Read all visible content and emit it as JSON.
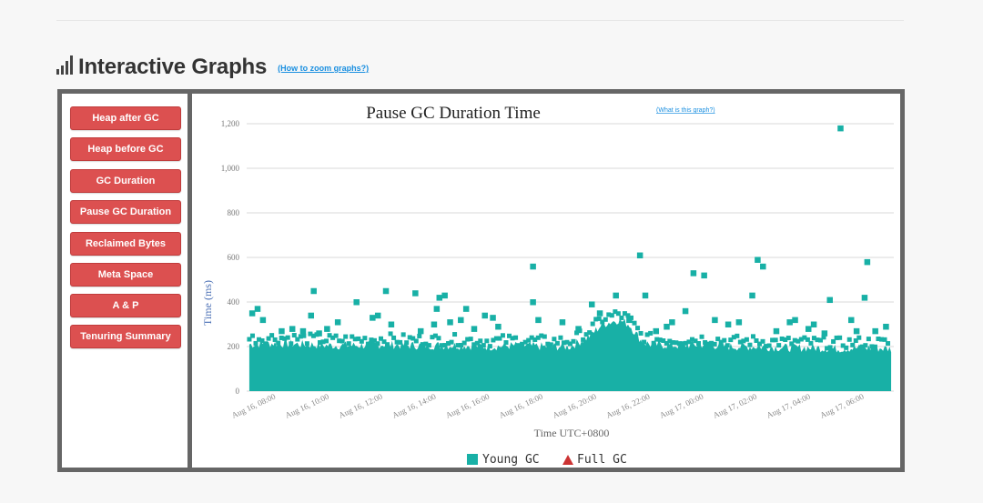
{
  "header": {
    "title": "Interactive Graphs",
    "zoom_link": "(How to zoom graphs?)"
  },
  "sidebar": {
    "buttons": [
      "Heap after GC",
      "Heap before GC",
      "GC Duration",
      "Pause GC Duration",
      "Reclaimed Bytes",
      "Meta Space",
      "A & P",
      "Tenuring Summary"
    ]
  },
  "chart": {
    "help_link": "(What is this graph?)"
  },
  "chart_data": {
    "type": "scatter",
    "title": "Pause GC Duration Time",
    "xlabel": "Time UTC+0800",
    "ylabel": "Time (ms)",
    "ylim": [
      0,
      1200
    ],
    "yticks": [
      0,
      200,
      400,
      600,
      800,
      1000,
      1200
    ],
    "ytick_labels": [
      "0",
      "200",
      "400",
      "600",
      "800",
      "1,000",
      "1,200"
    ],
    "x_hours_range": [
      6.9,
      31.1
    ],
    "xticks": [
      8,
      10,
      12,
      14,
      16,
      18,
      20,
      22,
      24,
      26,
      28,
      30
    ],
    "xtick_labels": [
      "Aug 16, 08:00",
      "Aug 16, 10:00",
      "Aug 16, 12:00",
      "Aug 16, 14:00",
      "Aug 16, 16:00",
      "Aug 16, 18:00",
      "Aug 16, 20:00",
      "Aug 16, 22:00",
      "Aug 17, 00:00",
      "Aug 17, 02:00",
      "Aug 17, 04:00",
      "Aug 17, 06:00"
    ],
    "band_profile": [
      [
        7.0,
        210
      ],
      [
        8.0,
        215
      ],
      [
        9.0,
        210
      ],
      [
        10.0,
        205
      ],
      [
        11.0,
        205
      ],
      [
        12.0,
        210
      ],
      [
        13.0,
        205
      ],
      [
        14.0,
        205
      ],
      [
        15.0,
        205
      ],
      [
        16.0,
        200
      ],
      [
        17.0,
        205
      ],
      [
        18.0,
        200
      ],
      [
        19.0,
        200
      ],
      [
        19.7,
        245
      ],
      [
        20.2,
        300
      ],
      [
        20.8,
        320
      ],
      [
        21.2,
        300
      ],
      [
        21.7,
        220
      ],
      [
        22.0,
        210
      ],
      [
        23.0,
        205
      ],
      [
        24.0,
        210
      ],
      [
        25.0,
        200
      ],
      [
        26.0,
        200
      ],
      [
        27.0,
        195
      ],
      [
        28.0,
        195
      ],
      [
        29.0,
        190
      ],
      [
        30.0,
        195
      ],
      [
        31.0,
        190
      ]
    ],
    "series": [
      {
        "name": "Young GC",
        "color": "#18b0a6",
        "marker": "square",
        "points": [
          [
            7.1,
            350
          ],
          [
            7.3,
            370
          ],
          [
            7.5,
            320
          ],
          [
            8.2,
            270
          ],
          [
            8.6,
            280
          ],
          [
            9.0,
            270
          ],
          [
            9.3,
            340
          ],
          [
            9.4,
            450
          ],
          [
            9.6,
            260
          ],
          [
            9.9,
            280
          ],
          [
            10.3,
            310
          ],
          [
            11.0,
            400
          ],
          [
            11.6,
            330
          ],
          [
            11.8,
            340
          ],
          [
            12.1,
            450
          ],
          [
            12.3,
            300
          ],
          [
            13.2,
            440
          ],
          [
            13.4,
            270
          ],
          [
            13.9,
            300
          ],
          [
            14.0,
            370
          ],
          [
            14.1,
            420
          ],
          [
            14.3,
            430
          ],
          [
            14.5,
            310
          ],
          [
            14.9,
            320
          ],
          [
            15.1,
            370
          ],
          [
            15.4,
            280
          ],
          [
            15.8,
            340
          ],
          [
            16.1,
            330
          ],
          [
            16.3,
            290
          ],
          [
            17.6,
            560
          ],
          [
            17.6,
            400
          ],
          [
            17.8,
            320
          ],
          [
            18.7,
            310
          ],
          [
            19.3,
            280
          ],
          [
            19.8,
            390
          ],
          [
            20.1,
            350
          ],
          [
            20.7,
            430
          ],
          [
            21.2,
            320
          ],
          [
            21.6,
            610
          ],
          [
            21.8,
            430
          ],
          [
            22.2,
            270
          ],
          [
            22.6,
            290
          ],
          [
            22.8,
            310
          ],
          [
            23.3,
            360
          ],
          [
            23.6,
            530
          ],
          [
            24.0,
            520
          ],
          [
            24.4,
            320
          ],
          [
            24.9,
            300
          ],
          [
            25.3,
            310
          ],
          [
            25.8,
            430
          ],
          [
            26.0,
            590
          ],
          [
            26.2,
            560
          ],
          [
            26.7,
            270
          ],
          [
            27.2,
            310
          ],
          [
            27.4,
            320
          ],
          [
            27.9,
            280
          ],
          [
            28.1,
            300
          ],
          [
            28.5,
            260
          ],
          [
            28.7,
            410
          ],
          [
            29.1,
            1180
          ],
          [
            29.5,
            320
          ],
          [
            29.7,
            270
          ],
          [
            30.1,
            580
          ],
          [
            30.0,
            420
          ],
          [
            30.4,
            270
          ],
          [
            30.8,
            290
          ]
        ]
      },
      {
        "name": "Full GC",
        "color": "#cc3333",
        "marker": "triangle",
        "points": []
      }
    ]
  }
}
